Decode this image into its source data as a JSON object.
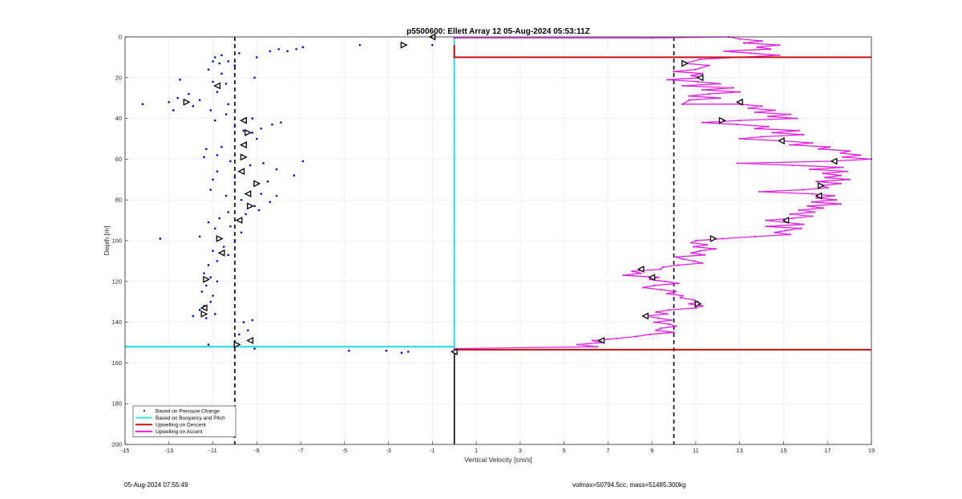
{
  "chart_data": {
    "type": "scatter",
    "title": "p5500600: Ellett Array 12 05-Aug-2024 05:53:11Z",
    "xlabel": "Vertical Velocity [cm/s]",
    "ylabel": "Depth [m]",
    "xlim": [
      -15,
      19
    ],
    "ylim": [
      0,
      200
    ],
    "y_reversed": true,
    "grid": true,
    "x_ticks": [
      "-15",
      "-13",
      "-11",
      "-9",
      "-7",
      "-5",
      "-3",
      "-1",
      "1",
      "3",
      "5",
      "7",
      "9",
      "11",
      "13",
      "15",
      "17",
      "19"
    ],
    "y_ticks": [
      "0",
      "20",
      "40",
      "60",
      "80",
      "100",
      "120",
      "140",
      "160",
      "180",
      "200"
    ],
    "legend_position": "bottom-left",
    "legend": [
      "Based on Pressure Change",
      "Based on Buoyancy and Pitch",
      "Upwelling on Descent",
      "Upwelling on Ascent"
    ],
    "reference_lines": {
      "dashed_black_x": [
        -10,
        10
      ],
      "solid_black_x": 0,
      "solid_black_depth_range": [
        153.5,
        200
      ]
    },
    "colors": {
      "pressure_change": "#0000cc",
      "buoyancy_pitch": "#33e0ee",
      "upwelling_descent": "#cc1111",
      "upwelling_ascent": "#e11ee1",
      "reference": "#000000",
      "grid": "#e6e6e6"
    },
    "series": [
      {
        "name": "Based on Pressure Change",
        "style": "points",
        "points": [
          [
            -1.0,
            4
          ],
          [
            -2.3,
            4
          ],
          [
            -4.3,
            4
          ],
          [
            -6.9,
            5
          ],
          [
            -7.2,
            6
          ],
          [
            -7.6,
            7
          ],
          [
            -8.0,
            6
          ],
          [
            -8.4,
            7
          ],
          [
            -9.0,
            10
          ],
          [
            -9.8,
            8
          ],
          [
            -10.6,
            9
          ],
          [
            -10.9,
            10
          ],
          [
            -11.0,
            12
          ],
          [
            -10.7,
            13
          ],
          [
            -10.3,
            12
          ],
          [
            -10.0,
            14
          ],
          [
            -11.2,
            16
          ],
          [
            -10.6,
            18
          ],
          [
            -9.1,
            20
          ],
          [
            -12.5,
            21
          ],
          [
            -11.0,
            22
          ],
          [
            -10.4,
            23
          ],
          [
            -10.8,
            27
          ],
          [
            -12.1,
            28
          ],
          [
            -12.6,
            30
          ],
          [
            -11.6,
            31
          ],
          [
            -11.9,
            34
          ],
          [
            -12.8,
            36
          ],
          [
            -14.2,
            33
          ],
          [
            -13.0,
            32
          ],
          [
            -10.3,
            33
          ],
          [
            -11.1,
            36
          ],
          [
            -9.2,
            40
          ],
          [
            -10.4,
            38
          ],
          [
            -10.9,
            41
          ],
          [
            -10.0,
            44
          ],
          [
            -9.6,
            46
          ],
          [
            -9.2,
            47
          ],
          [
            -8.8,
            45
          ],
          [
            -8.3,
            43
          ],
          [
            -7.9,
            42
          ],
          [
            -9.0,
            50
          ],
          [
            -9.5,
            52
          ],
          [
            -10.6,
            54
          ],
          [
            -11.3,
            55
          ],
          [
            -10.8,
            58
          ],
          [
            -11.4,
            59
          ],
          [
            -10.2,
            61
          ],
          [
            -9.3,
            63
          ],
          [
            -8.7,
            62
          ],
          [
            -6.9,
            61
          ],
          [
            -7.3,
            68
          ],
          [
            -8.1,
            65
          ],
          [
            -8.5,
            71
          ],
          [
            -9.1,
            72
          ],
          [
            -10.0,
            69
          ],
          [
            -10.8,
            66
          ],
          [
            -11.0,
            70
          ],
          [
            -11.1,
            75
          ],
          [
            -10.4,
            78
          ],
          [
            -9.7,
            80
          ],
          [
            -9.1,
            83
          ],
          [
            -8.8,
            77
          ],
          [
            -8.1,
            78
          ],
          [
            -8.4,
            81
          ],
          [
            -8.9,
            85
          ],
          [
            -9.5,
            87
          ],
          [
            -10.3,
            86
          ],
          [
            -10.7,
            89
          ],
          [
            -11.2,
            91
          ],
          [
            -10.9,
            94
          ],
          [
            -10.2,
            93
          ],
          [
            -9.7,
            96
          ],
          [
            -11.6,
            98
          ],
          [
            -13.4,
            99
          ],
          [
            -10.0,
            100
          ],
          [
            -10.5,
            103
          ],
          [
            -11.0,
            105
          ],
          [
            -10.3,
            107
          ],
          [
            -10.8,
            110
          ],
          [
            -11.2,
            112
          ],
          [
            -11.4,
            116
          ],
          [
            -11.1,
            118
          ],
          [
            -10.8,
            120
          ],
          [
            -11.3,
            122
          ],
          [
            -11.5,
            125
          ],
          [
            -11.0,
            127
          ],
          [
            -11.1,
            130
          ],
          [
            -11.4,
            132
          ],
          [
            -11.6,
            134
          ],
          [
            -11.9,
            137
          ],
          [
            -11.3,
            138
          ],
          [
            -10.9,
            136
          ],
          [
            -9.6,
            140
          ],
          [
            -9.2,
            139
          ],
          [
            -9.4,
            144
          ],
          [
            -9.8,
            146
          ],
          [
            -9.3,
            149
          ],
          [
            -10.0,
            151
          ],
          [
            -11.2,
            151
          ],
          [
            -9.1,
            153
          ],
          [
            -4.8,
            154
          ],
          [
            -3.1,
            154
          ],
          [
            -2.4,
            155
          ],
          [
            -2.1,
            154.5
          ]
        ]
      },
      {
        "name": "Based on Buoyancy and Pitch",
        "style": "line",
        "points": [
          [
            -15,
            152
          ],
          [
            0,
            152
          ],
          [
            0,
            10
          ],
          [
            0,
            0
          ]
        ]
      },
      {
        "name": "Upwelling on Descent",
        "style": "line",
        "points": [
          [
            0,
            4
          ],
          [
            0,
            10
          ],
          [
            19,
            10
          ]
        ],
        "extra_segment": [
          [
            0,
            153.5
          ],
          [
            19,
            153.5
          ]
        ]
      },
      {
        "name": "Upwelling on Ascent",
        "style": "line-markers",
        "points": [
          [
            0,
            0.5
          ],
          [
            9,
            0.5
          ],
          [
            12.5,
            0
          ],
          [
            13.0,
            1
          ],
          [
            14.0,
            2
          ],
          [
            13.2,
            3
          ],
          [
            14.8,
            4
          ],
          [
            13.8,
            5
          ],
          [
            14.4,
            6
          ],
          [
            12.3,
            7
          ],
          [
            13.5,
            8
          ],
          [
            14.8,
            9
          ],
          [
            13.0,
            10
          ],
          [
            11.2,
            11
          ],
          [
            10.5,
            13
          ],
          [
            11.6,
            14
          ],
          [
            11.0,
            16
          ],
          [
            10.0,
            17
          ],
          [
            11.3,
            18
          ],
          [
            10.8,
            19
          ],
          [
            11.3,
            20
          ],
          [
            9.7,
            21
          ],
          [
            11.1,
            22
          ],
          [
            12.1,
            23
          ],
          [
            10.4,
            24
          ],
          [
            12.7,
            25
          ],
          [
            11.3,
            26
          ],
          [
            13.0,
            27
          ],
          [
            11.6,
            28
          ],
          [
            10.7,
            29
          ],
          [
            12.1,
            30
          ],
          [
            10.7,
            31
          ],
          [
            10.4,
            33
          ],
          [
            13.0,
            33
          ],
          [
            14.0,
            34
          ],
          [
            13.4,
            35
          ],
          [
            14.6,
            36
          ],
          [
            13.7,
            37
          ],
          [
            15.3,
            38
          ],
          [
            14.3,
            39
          ],
          [
            15.6,
            40
          ],
          [
            13.0,
            41
          ],
          [
            11.3,
            42
          ],
          [
            12.9,
            43
          ],
          [
            14.3,
            44
          ],
          [
            13.7,
            45
          ],
          [
            15.7,
            46
          ],
          [
            14.5,
            47
          ],
          [
            15.9,
            48
          ],
          [
            14.0,
            49
          ],
          [
            13.0,
            50
          ],
          [
            14.9,
            51
          ],
          [
            16.3,
            52
          ],
          [
            15.3,
            53
          ],
          [
            17.1,
            54
          ],
          [
            16.6,
            55
          ],
          [
            18.0,
            56
          ],
          [
            17.6,
            57
          ],
          [
            18.5,
            58
          ],
          [
            17.7,
            59
          ],
          [
            19.0,
            60
          ],
          [
            17.2,
            61
          ],
          [
            12.9,
            62
          ],
          [
            15.4,
            63
          ],
          [
            17.7,
            64
          ],
          [
            16.2,
            65
          ],
          [
            17.9,
            66
          ],
          [
            16.8,
            67
          ],
          [
            17.6,
            68
          ],
          [
            16.9,
            69
          ],
          [
            18.0,
            70
          ],
          [
            16.5,
            71
          ],
          [
            17.6,
            72
          ],
          [
            16.7,
            73
          ],
          [
            17.0,
            74
          ],
          [
            15.9,
            75
          ],
          [
            13.9,
            76
          ],
          [
            16.3,
            77
          ],
          [
            17.3,
            78
          ],
          [
            16.5,
            79
          ],
          [
            17.4,
            80
          ],
          [
            16.3,
            81
          ],
          [
            17.6,
            82
          ],
          [
            16.1,
            83
          ],
          [
            16.8,
            84
          ],
          [
            15.7,
            85
          ],
          [
            16.4,
            86
          ],
          [
            15.3,
            87
          ],
          [
            16.3,
            88
          ],
          [
            15.4,
            89
          ],
          [
            14.2,
            90
          ],
          [
            15.1,
            91
          ],
          [
            15.9,
            92
          ],
          [
            14.2,
            93
          ],
          [
            15.8,
            94
          ],
          [
            15.1,
            95
          ],
          [
            14.6,
            96
          ],
          [
            15.3,
            97
          ],
          [
            13.7,
            98
          ],
          [
            12.2,
            99
          ],
          [
            11.0,
            100
          ],
          [
            10.8,
            101
          ],
          [
            11.5,
            102
          ],
          [
            10.9,
            103
          ],
          [
            11.9,
            104
          ],
          [
            11.2,
            105
          ],
          [
            10.8,
            106
          ],
          [
            11.4,
            107
          ],
          [
            10.1,
            108
          ],
          [
            10.4,
            109
          ],
          [
            10.9,
            110
          ],
          [
            11.3,
            111
          ],
          [
            10.2,
            112
          ],
          [
            9.5,
            113
          ],
          [
            9.4,
            114
          ],
          [
            8.1,
            115
          ],
          [
            8.5,
            116
          ],
          [
            7.7,
            117
          ],
          [
            9.3,
            118
          ],
          [
            8.9,
            119
          ],
          [
            9.6,
            120
          ],
          [
            10.2,
            121
          ],
          [
            9.1,
            122
          ],
          [
            8.6,
            123
          ],
          [
            9.4,
            124
          ],
          [
            10.1,
            125
          ],
          [
            9.7,
            126
          ],
          [
            10.4,
            127
          ],
          [
            10.3,
            128
          ],
          [
            10.9,
            129
          ],
          [
            11.1,
            130
          ],
          [
            10.7,
            131
          ],
          [
            11.3,
            132
          ],
          [
            11.0,
            133
          ],
          [
            9.8,
            134
          ],
          [
            9.2,
            135
          ],
          [
            9.7,
            136
          ],
          [
            8.7,
            137
          ],
          [
            9.3,
            138
          ],
          [
            9.9,
            139
          ],
          [
            9.1,
            140
          ],
          [
            9.8,
            141
          ],
          [
            10.1,
            142
          ],
          [
            9.4,
            143
          ],
          [
            9.2,
            144
          ],
          [
            10.0,
            145
          ],
          [
            8.9,
            146
          ],
          [
            8.3,
            147
          ],
          [
            7.4,
            148
          ],
          [
            6.3,
            149
          ],
          [
            6.7,
            150
          ],
          [
            5.6,
            151
          ],
          [
            6.5,
            152
          ],
          [
            0,
            153
          ]
        ]
      }
    ],
    "annotation_markers_pressure": [
      [
        -1.0,
        0
      ],
      [
        -2.3,
        4
      ],
      [
        -10.8,
        24
      ],
      [
        -12.2,
        32
      ],
      [
        -9.6,
        41
      ],
      [
        -9.4,
        47
      ],
      [
        -9.6,
        53
      ],
      [
        -9.6,
        59
      ],
      [
        -9.7,
        66
      ],
      [
        -9.0,
        72
      ],
      [
        -9.4,
        77
      ],
      [
        -9.3,
        83
      ],
      [
        -9.8,
        90
      ],
      [
        -10.7,
        99
      ],
      [
        -10.6,
        106
      ],
      [
        -11.3,
        119
      ],
      [
        -11.4,
        133
      ],
      [
        -11.4,
        136
      ],
      [
        -9.3,
        149
      ],
      [
        -9.9,
        151
      ],
      [
        0,
        154.5
      ]
    ],
    "annotation_markers_ascent": [
      [
        10.5,
        13
      ],
      [
        11.2,
        20
      ],
      [
        13.0,
        32
      ],
      [
        12.2,
        41
      ],
      [
        14.9,
        51
      ],
      [
        17.3,
        61
      ],
      [
        16.7,
        73
      ],
      [
        16.6,
        78
      ],
      [
        15.1,
        90
      ],
      [
        11.8,
        99
      ],
      [
        8.5,
        114
      ],
      [
        9.0,
        118
      ],
      [
        11.1,
        131
      ],
      [
        8.7,
        137
      ],
      [
        6.7,
        149
      ]
    ]
  },
  "footer": {
    "timestamp": "05-Aug-2024 07:55:49",
    "vol_mass": "volmax=50794.5cc, mass=51485.300kg"
  }
}
